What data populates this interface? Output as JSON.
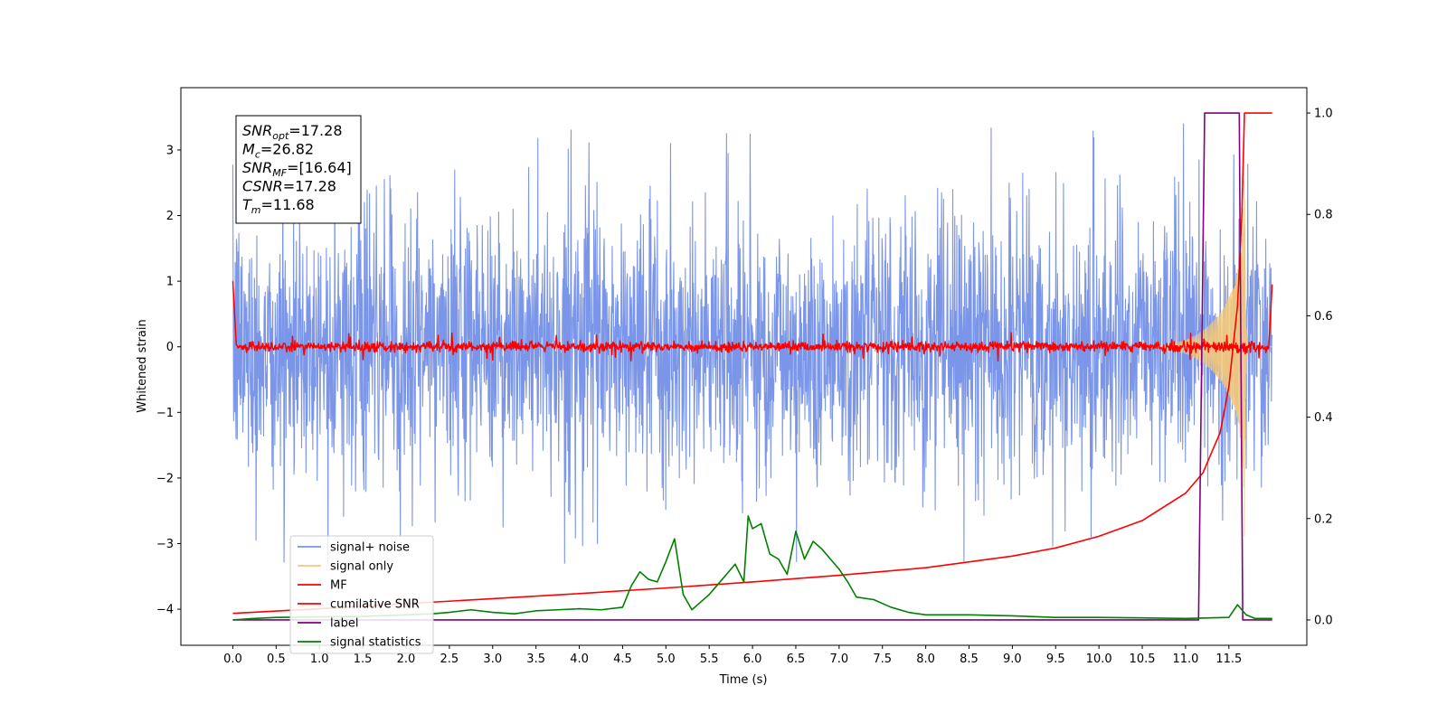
{
  "chart_data": {
    "type": "line",
    "xlabel": "Time (s)",
    "ylabel": "Whitened strain",
    "xlim": [
      -0.6,
      12.4
    ],
    "ylim": [
      -4.55,
      3.95
    ],
    "y2lim": [
      -0.05,
      1.05
    ],
    "x_ticks": [
      "0.0",
      "0.5",
      "1.0",
      "1.5",
      "2.0",
      "2.5",
      "3.0",
      "3.5",
      "4.0",
      "4.5",
      "5.0",
      "5.5",
      "6.0",
      "6.5",
      "7.0",
      "7.5",
      "8.0",
      "8.5",
      "9.0",
      "9.5",
      "10.0",
      "10.5",
      "11.0",
      "11.5"
    ],
    "y_ticks": [
      "3",
      "2",
      "1",
      "0",
      "−1",
      "−2",
      "−3",
      "−4"
    ],
    "y2_ticks": [
      "1.0",
      "0.8",
      "0.6",
      "0.4",
      "0.2",
      "0.0"
    ],
    "legend_placement": "lower-left",
    "annotation": {
      "lines": [
        {
          "symbol": "SNR",
          "sub": "opt",
          "value": "=17.28"
        },
        {
          "symbol": "M",
          "sub": "c",
          "value": "=26.82"
        },
        {
          "symbol": "SNR",
          "sub": "MF",
          "value": "=[16.64]"
        },
        {
          "symbol": "CSNR",
          "sub": "",
          "value": "=17.28"
        },
        {
          "symbol": "T",
          "sub": "m",
          "value": "=11.68"
        }
      ]
    },
    "series": [
      {
        "name": "signal+ noise",
        "color": "#7b96e8",
        "style": "noise band",
        "x_range": [
          0.0,
          12.0
        ],
        "typical_range": [
          -1.7,
          1.7
        ],
        "peak_range": [
          -3.3,
          3.6
        ]
      },
      {
        "name": "signal only",
        "color": "#f5c97a",
        "style": "chirp",
        "x_range": [
          0.0,
          12.0
        ],
        "peak_amplitude": 2.9,
        "merger_time": 11.68
      },
      {
        "name": "MF",
        "color": "#ff0000",
        "style": "noise band",
        "x_range": [
          0.0,
          12.0
        ],
        "typical_range": [
          -0.07,
          0.07
        ],
        "start_value": 1.0,
        "end_value": 0.95
      },
      {
        "name": "cumilative SNR",
        "color": "#ff0000",
        "axis": "right",
        "x": [
          0.0,
          1.0,
          2.0,
          3.0,
          4.0,
          5.0,
          6.0,
          7.0,
          8.0,
          9.0,
          9.5,
          10.0,
          10.5,
          11.0,
          11.2,
          11.4,
          11.5,
          11.6,
          11.65,
          11.68,
          11.75,
          12.0
        ],
        "y": [
          0.013,
          0.022,
          0.032,
          0.042,
          0.052,
          0.063,
          0.075,
          0.088,
          0.103,
          0.126,
          0.142,
          0.165,
          0.196,
          0.25,
          0.29,
          0.37,
          0.46,
          0.62,
          0.8,
          1.0,
          1.0,
          1.0
        ]
      },
      {
        "name": "label",
        "color": "#800080",
        "axis": "right",
        "x": [
          0.0,
          11.15,
          11.22,
          11.62,
          11.66,
          12.0
        ],
        "y": [
          0.0,
          0.0,
          1.0,
          1.0,
          0.0,
          0.0
        ]
      },
      {
        "name": "signal statistics",
        "color": "#008000",
        "axis": "right",
        "x": [
          0.0,
          0.25,
          0.5,
          1.0,
          1.5,
          2.0,
          2.3,
          2.5,
          2.75,
          3.0,
          3.25,
          3.5,
          3.75,
          4.0,
          4.25,
          4.5,
          4.6,
          4.7,
          4.8,
          4.9,
          5.0,
          5.1,
          5.2,
          5.3,
          5.4,
          5.5,
          5.6,
          5.7,
          5.8,
          5.9,
          5.95,
          6.0,
          6.1,
          6.2,
          6.3,
          6.4,
          6.5,
          6.6,
          6.7,
          6.8,
          6.9,
          7.0,
          7.1,
          7.2,
          7.4,
          7.6,
          7.8,
          8.0,
          8.5,
          9.0,
          9.5,
          10.0,
          10.5,
          11.0,
          11.5,
          11.6,
          11.7,
          11.8,
          12.0
        ],
        "y": [
          0.0,
          0.003,
          0.005,
          0.006,
          0.007,
          0.01,
          0.012,
          0.015,
          0.02,
          0.015,
          0.012,
          0.018,
          0.02,
          0.022,
          0.02,
          0.025,
          0.067,
          0.095,
          0.08,
          0.075,
          0.115,
          0.16,
          0.05,
          0.02,
          0.035,
          0.05,
          0.07,
          0.09,
          0.11,
          0.075,
          0.205,
          0.18,
          0.19,
          0.13,
          0.12,
          0.09,
          0.175,
          0.12,
          0.155,
          0.14,
          0.12,
          0.1,
          0.075,
          0.045,
          0.04,
          0.025,
          0.015,
          0.01,
          0.01,
          0.008,
          0.005,
          0.005,
          0.004,
          0.003,
          0.005,
          0.03,
          0.01,
          0.003,
          0.003
        ]
      }
    ]
  }
}
